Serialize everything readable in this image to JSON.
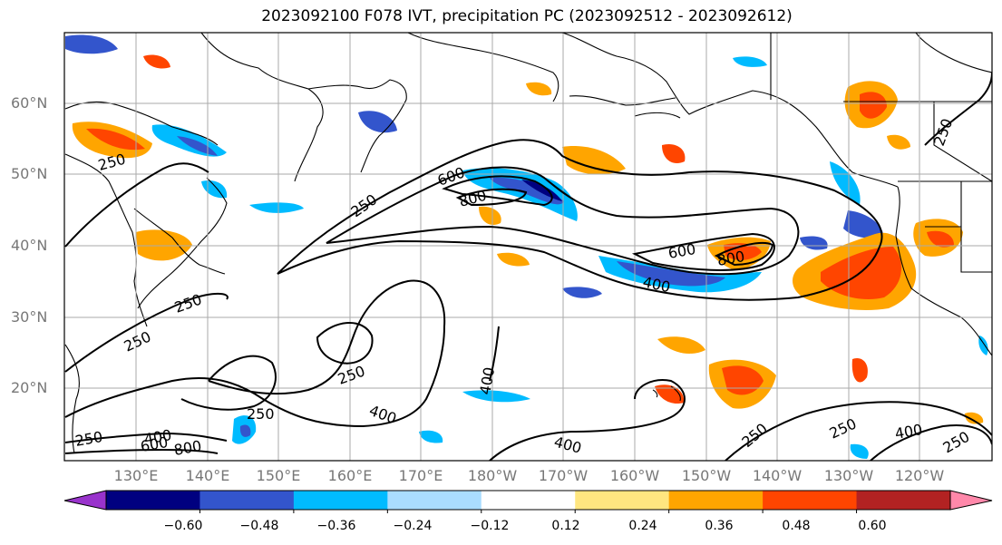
{
  "title": "2023092100 F078 IVT, precipitation PC (2023092512 - 2023092612)",
  "lat_labels": [
    "60°N",
    "50°N",
    "40°N",
    "30°N",
    "20°N"
  ],
  "lon_labels": [
    "130°E",
    "140°E",
    "150°E",
    "160°E",
    "170°E",
    "180°W",
    "170°W",
    "160°W",
    "150°W",
    "140°W",
    "130°W",
    "120°W"
  ],
  "contour_labels": [
    "250",
    "600",
    "800",
    "250",
    "600",
    "800",
    "400",
    "250",
    "250",
    "250",
    "400",
    "600",
    "800",
    "250",
    "400",
    "250",
    "400",
    "250",
    "250",
    "400",
    "250",
    "400",
    "250"
  ],
  "colorbar": {
    "ticks": [
      "−0.60",
      "−0.48",
      "−0.36",
      "−0.24",
      "−0.12",
      "0.12",
      "0.24",
      "0.36",
      "0.48",
      "0.60"
    ],
    "colors": [
      "#9933cc",
      "#000080",
      "#3355cc",
      "#00bbff",
      "#aaddff",
      "#ffffff",
      "#ffe680",
      "#ffa500",
      "#ff4500",
      "#b22222",
      "#ff88aa"
    ]
  },
  "colors": {
    "neg_light": "#aaddff",
    "neg_mid": "#00bbff",
    "neg_strong": "#3355cc",
    "neg_max": "#000080",
    "pos_light": "#ffe680",
    "pos_mid": "#ffa500",
    "pos_strong": "#ff4500",
    "pos_max": "#b22222"
  }
}
